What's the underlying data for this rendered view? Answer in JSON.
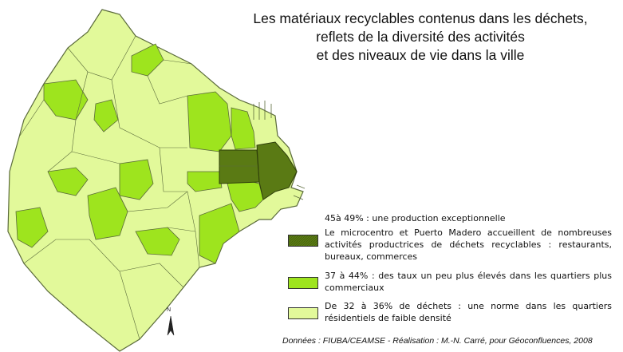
{
  "title": {
    "line1": "Les matériaux recyclables contenus dans les déchets,",
    "line2": "reflets de la diversité des activités",
    "line3": "et des niveaux de vie dans la ville"
  },
  "legend": {
    "header": "45à 49% : une production exceptionnelle",
    "items": [
      {
        "id": "high",
        "color": "#5a7a14",
        "text": "Le microcentro et Puerto Madero accueillent de nombreuses activités productrices de déchets recyclables : restaurants, bureaux, commerces"
      },
      {
        "id": "mid",
        "color": "#9ee41e",
        "text": "37 à 44% : des taux un peu plus élevés dans les quartiers plus commerciaux"
      },
      {
        "id": "low",
        "color": "#e2f99a",
        "text": "De 32 à 36% de déchets : une norme dans les quartiers résidentiels de faible densité"
      }
    ]
  },
  "north_label": "N",
  "credits": "Données : FIUBA/CEAMSE - Réalisation : M.-N. Carré, pour Géoconfluences, 2008",
  "colors": {
    "border": "#5a6a3a",
    "high": "#5a7a14",
    "mid": "#9ee41e",
    "low": "#e2f99a"
  }
}
